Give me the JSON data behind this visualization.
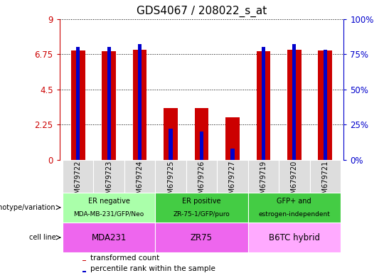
{
  "title": "GDS4067 / 208022_s_at",
  "samples": [
    "GSM679722",
    "GSM679723",
    "GSM679724",
    "GSM679725",
    "GSM679726",
    "GSM679727",
    "GSM679719",
    "GSM679720",
    "GSM679721"
  ],
  "transformed_count": [
    7.0,
    6.95,
    7.02,
    3.3,
    3.32,
    2.72,
    6.95,
    7.05,
    6.97
  ],
  "percentile_rank": [
    80,
    80,
    82,
    22,
    20,
    8,
    80,
    82,
    78
  ],
  "ylim_left": [
    0,
    9
  ],
  "ylim_right": [
    0,
    100
  ],
  "yticks_left": [
    0,
    2.25,
    4.5,
    6.75,
    9
  ],
  "yticks_right": [
    0,
    25,
    50,
    75,
    100
  ],
  "left_tick_labels": [
    "0",
    "2.25",
    "4.5",
    "6.75",
    "9"
  ],
  "right_tick_labels": [
    "0%",
    "25%",
    "50%",
    "75%",
    "100%"
  ],
  "bar_color": "#cc0000",
  "percentile_color": "#0000cc",
  "groups_def": [
    {
      "label_top": "ER negative",
      "label_bot": "MDA-MB-231/GFP/Neo",
      "start": 0,
      "end": 2,
      "color": "#aaffaa"
    },
    {
      "label_top": "ER positive",
      "label_bot": "ZR-75-1/GFP/puro",
      "start": 3,
      "end": 5,
      "color": "#44cc44"
    },
    {
      "label_top": "GFP+ and",
      "label_bot": "estrogen-independent",
      "start": 6,
      "end": 8,
      "color": "#44cc44"
    }
  ],
  "cell_lines_def": [
    {
      "label": "MDA231",
      "start": 0,
      "end": 2,
      "color": "#ee66ee"
    },
    {
      "label": "ZR75",
      "start": 3,
      "end": 5,
      "color": "#ee66ee"
    },
    {
      "label": "B6TC hybrid",
      "start": 6,
      "end": 8,
      "color": "#ffaaff"
    }
  ],
  "genotype_label": "genotype/variation",
  "cell_line_label": "cell line",
  "legend_red": "transformed count",
  "legend_blue": "percentile rank within the sample",
  "left_axis_color": "#cc0000",
  "right_axis_color": "#0000cc",
  "bar_width": 0.45,
  "blue_bar_width": 0.12,
  "title_fontsize": 11,
  "tick_fontsize": 8.5,
  "sample_fontsize": 7,
  "annotation_fontsize": 7
}
